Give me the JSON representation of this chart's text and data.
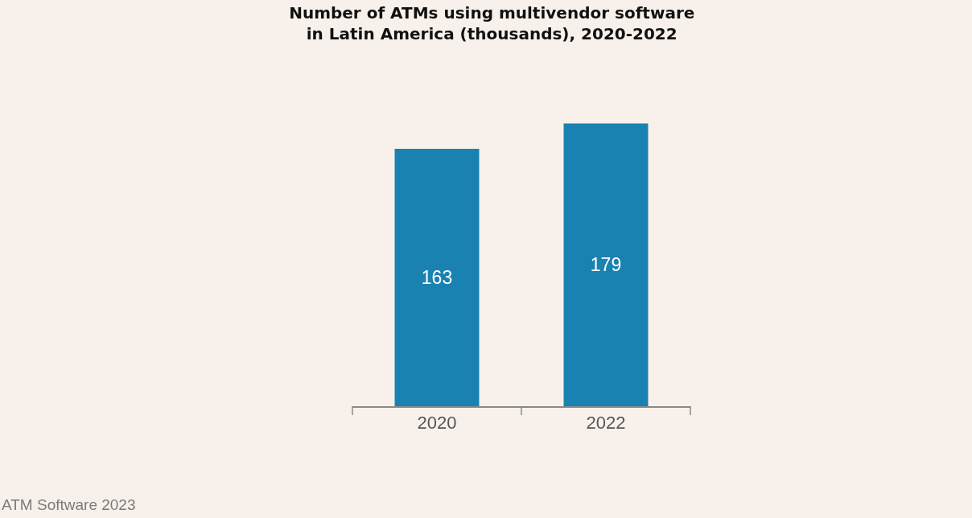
{
  "chart_data": {
    "type": "bar",
    "title": "Number of ATMs using multivendor software\nin Latin America (thousands), 2020-2022",
    "categories": [
      "2020",
      "2022"
    ],
    "values": [
      163,
      179
    ],
    "color": "#1a82b0",
    "data_labels": true,
    "annotations": [
      "ATM Software 2023"
    ]
  }
}
